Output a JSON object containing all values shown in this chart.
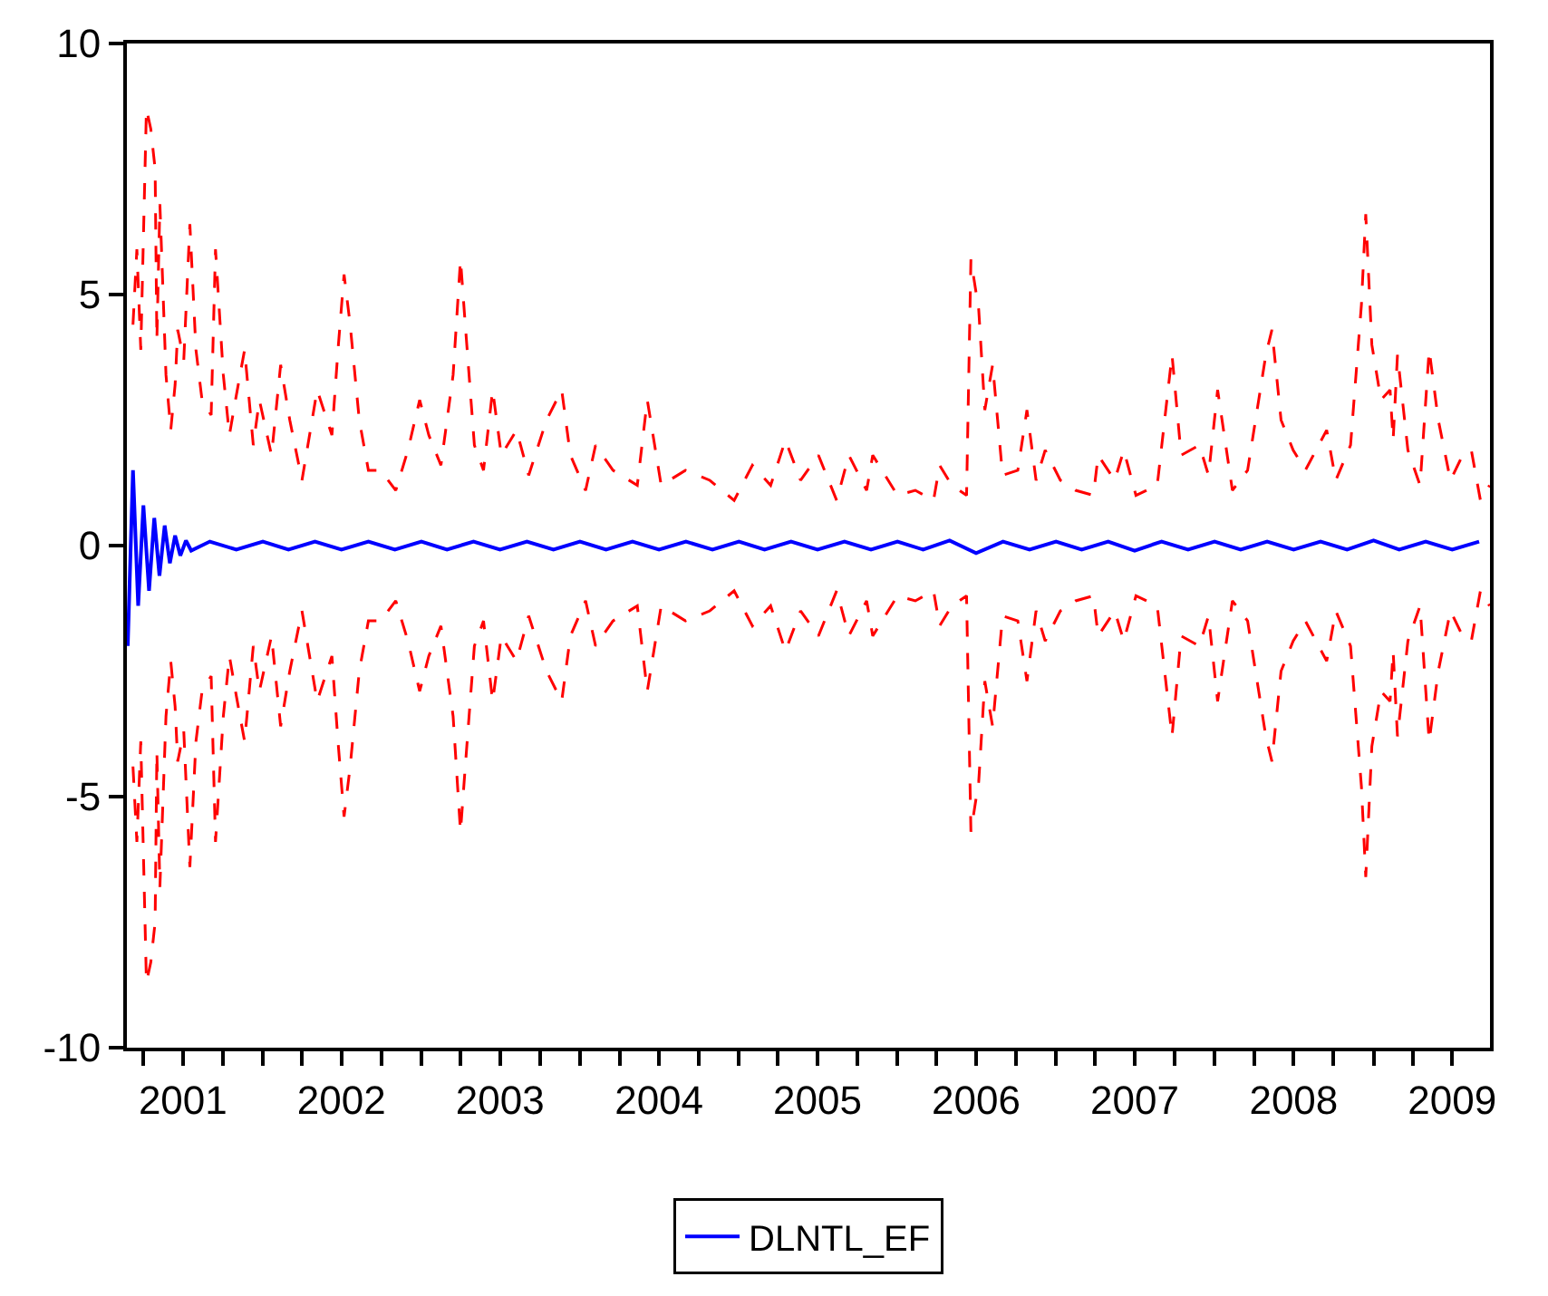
{
  "chart_data": {
    "type": "line",
    "x": [
      "2001-03-08",
      "2001-03-17",
      "2001-03-26",
      "2001-04-08",
      "2001-04-18",
      "2001-04-28",
      "2001-05-02",
      "2001-05-09",
      "2001-05-23",
      "2001-06-03",
      "2001-06-13",
      "2001-06-19",
      "2001-07-03",
      "2001-07-17",
      "2001-07-31",
      "2001-08-14",
      "2001-09-04",
      "2001-09-14",
      "2001-10-02",
      "2001-10-16",
      "2001-10-30",
      "2001-11-20",
      "2001-12-10",
      "2001-12-24",
      "2002-01-21",
      "2002-02-11",
      "2002-03-04",
      "2002-04-01",
      "2002-05-06",
      "2002-06-09",
      "2002-06-23",
      "2002-07-07",
      "2002-07-21",
      "2002-08-11",
      "2002-09-01",
      "2002-09-29",
      "2002-11-03",
      "2002-12-01",
      "2002-12-28",
      "2003-01-18",
      "2003-02-15",
      "2003-03-15",
      "2003-04-01",
      "2003-04-12",
      "2003-05-03",
      "2003-05-24",
      "2003-06-14",
      "2003-07-04",
      "2003-08-08",
      "2003-09-05",
      "2003-10-16",
      "2003-11-20",
      "2003-12-10",
      "2004-01-14",
      "2004-02-06",
      "2004-03-17",
      "2004-05-12",
      "2004-06-04",
      "2004-07-06",
      "2004-08-31",
      "2004-10-26",
      "2004-12-21",
      "2005-02-01",
      "2005-03-15",
      "2005-04-18",
      "2005-05-23",
      "2005-07-03",
      "2005-08-14",
      "2005-09-11",
      "2005-10-22",
      "2005-11-05",
      "2006-01-01",
      "2006-02-11",
      "2006-03-25",
      "2006-04-08",
      "2006-05-06",
      "2006-06-09",
      "2006-06-19",
      "2006-07-07",
      "2006-07-21",
      "2006-08-08",
      "2006-08-31",
      "2006-10-05",
      "2006-10-26",
      "2006-11-16",
      "2006-12-07",
      "2007-01-11",
      "2007-02-15",
      "2007-03-28",
      "2007-04-08",
      "2007-05-16",
      "2007-06-06",
      "2007-07-04",
      "2007-08-22",
      "2007-09-25",
      "2007-10-16",
      "2007-11-27",
      "2007-12-18",
      "2008-01-08",
      "2008-02-11",
      "2008-03-17",
      "2008-04-28",
      "2008-05-12",
      "2008-06-02",
      "2008-06-30",
      "2008-07-28",
      "2008-09-15",
      "2008-10-06",
      "2008-11-09",
      "2008-12-04",
      "2008-12-14",
      "2008-12-28",
      "2009-01-18",
      "2009-02-08",
      "2009-02-15",
      "2009-02-25",
      "2009-03-21",
      "2009-04-18",
      "2009-05-09",
      "2009-05-30",
      "2009-06-27",
      "2009-07-25",
      "2009-08-14",
      "2009-09-04",
      "2009-09-25"
    ],
    "series": [
      {
        "color": "#ff0000",
        "line_style": "dashed",
        "values": [
          4.4,
          5.9,
          3.9,
          8.7,
          8.3,
          7.5,
          4.1,
          6.8,
          3.4,
          2.3,
          3.2,
          4.3,
          3.7,
          6.4,
          3.9,
          2.9,
          2.6,
          5.9,
          3.4,
          2.2,
          2.9,
          3.9,
          2.0,
          2.9,
          1.8,
          3.6,
          2.5,
          1.3,
          3.1,
          2.2,
          3.9,
          5.4,
          4.4,
          2.5,
          1.5,
          1.5,
          1.1,
          1.9,
          2.9,
          2.2,
          1.6,
          3.4,
          5.7,
          4.4,
          2.0,
          1.5,
          3.1,
          1.8,
          2.3,
          1.4,
          2.5,
          3.1,
          1.8,
          1.1,
          2.0,
          1.5,
          1.2,
          2.9,
          1.2,
          1.5,
          1.3,
          0.9,
          1.6,
          1.2,
          2.1,
          1.3,
          1.8,
          0.9,
          1.8,
          1.1,
          1.8,
          1.0,
          1.1,
          0.9,
          1.6,
          1.2,
          1.0,
          5.7,
          4.7,
          2.7,
          3.6,
          1.4,
          1.5,
          2.7,
          1.3,
          1.9,
          1.3,
          1.1,
          1.0,
          1.8,
          1.3,
          1.9,
          1.0,
          1.2,
          3.8,
          1.8,
          2.0,
          1.4,
          3.1,
          1.1,
          1.5,
          3.8,
          4.3,
          2.5,
          1.9,
          1.5,
          2.3,
          1.3,
          2.0,
          4.8,
          6.6,
          4.0,
          2.9,
          3.1,
          2.1,
          3.8,
          1.9,
          1.2,
          3.9,
          2.5,
          1.3,
          1.8,
          1.9,
          0.9,
          1.2
        ]
      },
      {
        "color": "#ff0000",
        "line_style": "dashed",
        "values": [
          -4.4,
          -5.9,
          -3.9,
          -8.7,
          -8.3,
          -7.5,
          -4.1,
          -6.8,
          -3.4,
          -2.3,
          -3.2,
          -4.3,
          -3.7,
          -6.4,
          -3.9,
          -2.9,
          -2.6,
          -5.9,
          -3.4,
          -2.2,
          -2.9,
          -3.9,
          -2.0,
          -2.9,
          -1.8,
          -3.6,
          -2.5,
          -1.3,
          -3.1,
          -2.2,
          -3.9,
          -5.4,
          -4.4,
          -2.5,
          -1.5,
          -1.5,
          -1.1,
          -1.9,
          -2.9,
          -2.2,
          -1.6,
          -3.4,
          -5.7,
          -4.4,
          -2.0,
          -1.5,
          -3.1,
          -1.8,
          -2.3,
          -1.4,
          -2.5,
          -3.1,
          -1.8,
          -1.1,
          -2.0,
          -1.5,
          -1.2,
          -2.9,
          -1.2,
          -1.5,
          -1.3,
          -0.9,
          -1.6,
          -1.2,
          -2.1,
          -1.3,
          -1.8,
          -0.9,
          -1.8,
          -1.1,
          -1.8,
          -1.0,
          -1.1,
          -0.9,
          -1.6,
          -1.2,
          -1.0,
          -5.7,
          -4.7,
          -2.7,
          -3.6,
          -1.4,
          -1.5,
          -2.7,
          -1.3,
          -1.9,
          -1.3,
          -1.1,
          -1.0,
          -1.8,
          -1.3,
          -1.9,
          -1.0,
          -1.2,
          -3.8,
          -1.8,
          -2.0,
          -1.4,
          -3.1,
          -1.1,
          -1.5,
          -3.8,
          -4.3,
          -2.5,
          -1.9,
          -1.5,
          -2.3,
          -1.3,
          -2.0,
          -4.8,
          -6.6,
          -4.0,
          -2.9,
          -3.1,
          -2.1,
          -3.8,
          -1.9,
          -1.2,
          -3.9,
          -2.5,
          -1.3,
          -1.8,
          -1.9,
          -0.9,
          -1.2
        ]
      },
      {
        "name": "DLNTL_EF",
        "color": "#0000ff",
        "line_style": "solid",
        "x": [
          "2001-02-24",
          "2001-03-08",
          "2001-03-20",
          "2001-04-01",
          "2001-04-14",
          "2001-04-26",
          "2001-05-08",
          "2001-05-20",
          "2001-06-01",
          "2001-06-13",
          "2001-06-25",
          "2001-07-08",
          "2001-07-20",
          "2001-09-01",
          "2001-11-01",
          "2002-01-01",
          "2002-03-01",
          "2002-05-01",
          "2002-07-01",
          "2002-09-01",
          "2002-11-01",
          "2003-01-01",
          "2003-03-01",
          "2003-05-01",
          "2003-07-01",
          "2003-09-01",
          "2003-11-01",
          "2004-01-01",
          "2004-03-01",
          "2004-05-01",
          "2004-07-01",
          "2004-09-01",
          "2004-11-01",
          "2005-01-01",
          "2005-03-01",
          "2005-05-01",
          "2005-07-01",
          "2005-09-01",
          "2005-11-01",
          "2006-01-01",
          "2006-03-01",
          "2006-05-01",
          "2006-07-01",
          "2006-09-01",
          "2006-11-01",
          "2007-01-01",
          "2007-03-01",
          "2007-05-01",
          "2007-07-01",
          "2007-09-01",
          "2007-11-01",
          "2008-01-01",
          "2008-03-01",
          "2008-05-01",
          "2008-07-01",
          "2008-09-01",
          "2008-11-01",
          "2009-01-01",
          "2009-03-01",
          "2009-05-01",
          "2009-07-01",
          "2009-09-01"
        ],
        "values": [
          -2.0,
          1.5,
          -1.2,
          0.8,
          -0.9,
          0.55,
          -0.6,
          0.4,
          -0.35,
          0.2,
          -0.2,
          0.1,
          -0.1,
          0.08,
          -0.08,
          0.08,
          -0.08,
          0.08,
          -0.08,
          0.08,
          -0.08,
          0.08,
          -0.08,
          0.08,
          -0.08,
          0.08,
          -0.08,
          0.08,
          -0.08,
          0.08,
          -0.08,
          0.08,
          -0.08,
          0.08,
          -0.08,
          0.08,
          -0.08,
          0.08,
          -0.08,
          0.08,
          -0.08,
          0.1,
          -0.15,
          0.08,
          -0.08,
          0.08,
          -0.08,
          0.08,
          -0.1,
          0.08,
          -0.08,
          0.08,
          -0.08,
          0.08,
          -0.08,
          0.08,
          -0.08,
          0.1,
          -0.08,
          0.08,
          -0.08,
          0.08
        ]
      }
    ],
    "xlim": [
      "2001-02-22",
      "2009-09-26"
    ],
    "xticks": [
      {
        "value": "2001-04-01",
        "label": null
      },
      {
        "value": "2001-07-01",
        "label": "2001"
      },
      {
        "value": "2001-10-01",
        "label": null
      },
      {
        "value": "2002-01-01",
        "label": null
      },
      {
        "value": "2002-04-01",
        "label": null
      },
      {
        "value": "2002-07-01",
        "label": "2002"
      },
      {
        "value": "2002-10-01",
        "label": null
      },
      {
        "value": "2003-01-01",
        "label": null
      },
      {
        "value": "2003-04-01",
        "label": null
      },
      {
        "value": "2003-07-01",
        "label": "2003"
      },
      {
        "value": "2003-10-01",
        "label": null
      },
      {
        "value": "2004-01-01",
        "label": null
      },
      {
        "value": "2004-04-01",
        "label": null
      },
      {
        "value": "2004-07-01",
        "label": "2004"
      },
      {
        "value": "2004-10-01",
        "label": null
      },
      {
        "value": "2005-01-01",
        "label": null
      },
      {
        "value": "2005-04-01",
        "label": null
      },
      {
        "value": "2005-07-01",
        "label": "2005"
      },
      {
        "value": "2005-10-01",
        "label": null
      },
      {
        "value": "2006-01-01",
        "label": null
      },
      {
        "value": "2006-04-01",
        "label": null
      },
      {
        "value": "2006-07-01",
        "label": "2006"
      },
      {
        "value": "2006-10-01",
        "label": null
      },
      {
        "value": "2007-01-01",
        "label": null
      },
      {
        "value": "2007-04-01",
        "label": null
      },
      {
        "value": "2007-07-01",
        "label": "2007"
      },
      {
        "value": "2007-10-01",
        "label": null
      },
      {
        "value": "2008-01-01",
        "label": null
      },
      {
        "value": "2008-04-01",
        "label": null
      },
      {
        "value": "2008-07-01",
        "label": "2008"
      },
      {
        "value": "2008-10-01",
        "label": null
      },
      {
        "value": "2009-01-01",
        "label": null
      },
      {
        "value": "2009-04-01",
        "label": null
      },
      {
        "value": "2009-07-01",
        "label": "2009"
      }
    ],
    "ylim": [
      -10,
      10
    ],
    "yticks": [
      -10,
      -5,
      0,
      5,
      10
    ],
    "legend": "bottom"
  }
}
